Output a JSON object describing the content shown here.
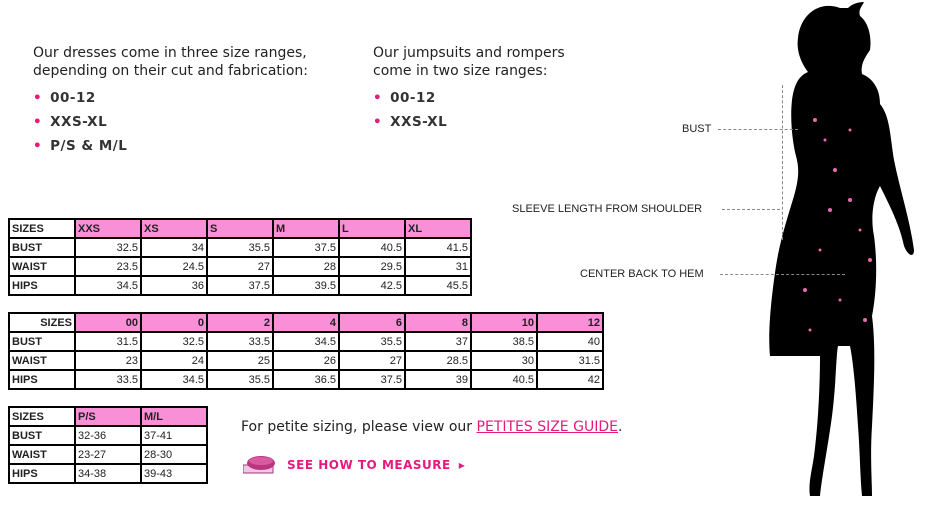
{
  "dresses": {
    "intro": "Our dresses come in three size ranges, depending on their cut and fabrication:",
    "ranges": [
      "00-12",
      "XXS-XL",
      "P/S & M/L"
    ]
  },
  "jumpsuits": {
    "intro": "Our jumpsuits and rompers come in two size ranges:",
    "ranges": [
      "00-12",
      "XXS-XL"
    ]
  },
  "tables": [
    {
      "header": [
        "SIZES",
        "XXS",
        "XS",
        "S",
        "M",
        "L",
        "XL"
      ],
      "rows": [
        [
          "BUST",
          "32.5",
          "34",
          "35.5",
          "37.5",
          "40.5",
          "41.5"
        ],
        [
          "WAIST",
          "23.5",
          "24.5",
          "27",
          "28",
          "29.5",
          "31"
        ],
        [
          "HIPS",
          "34.5",
          "36",
          "37.5",
          "39.5",
          "42.5",
          "45.5"
        ]
      ]
    },
    {
      "header": [
        "SIZES",
        "00",
        "0",
        "2",
        "4",
        "6",
        "8",
        "10",
        "12"
      ],
      "rows": [
        [
          "BUST",
          "31.5",
          "32.5",
          "33.5",
          "34.5",
          "35.5",
          "37",
          "38.5",
          "40"
        ],
        [
          "WAIST",
          "23",
          "24",
          "25",
          "26",
          "27",
          "28.5",
          "30",
          "31.5"
        ],
        [
          "HIPS",
          "33.5",
          "34.5",
          "35.5",
          "36.5",
          "37.5",
          "39",
          "40.5",
          "42"
        ]
      ]
    },
    {
      "header": [
        "SIZES",
        "P/S",
        "M/L"
      ],
      "rows": [
        [
          "BUST",
          "32-36",
          "37-41"
        ],
        [
          "WAIST",
          "23-27",
          "28-30"
        ],
        [
          "HIPS",
          "34-38",
          "39-43"
        ]
      ]
    }
  ],
  "petite": {
    "text": "For petite sizing, please view our ",
    "link": "PETITES SIZE GUIDE",
    "end": "."
  },
  "measure": {
    "label": "SEE HOW TO MEASURE",
    "icon": "tape-measure-icon"
  },
  "figure": {
    "bust": "BUST",
    "sleeve": "SLEEVE LENGTH FROM SHOULDER",
    "hem": "CENTER BACK TO HEM"
  },
  "colors": {
    "pink": "#f98fd6",
    "accent": "#e5197f"
  }
}
